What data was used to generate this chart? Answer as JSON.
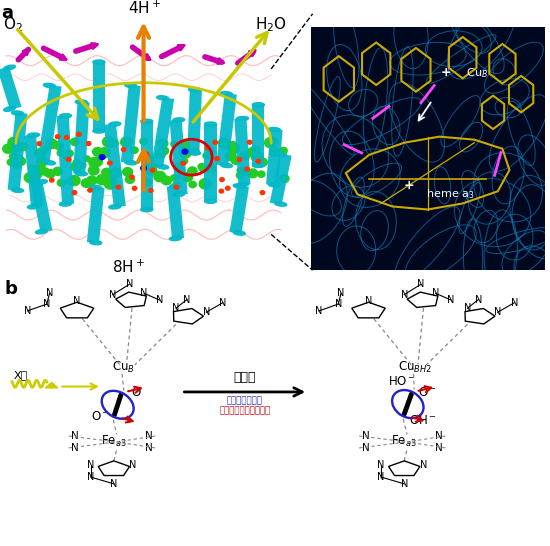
{
  "panel_a_label": "a",
  "panel_b_label": "b",
  "fig_width": 5.5,
  "fig_height": 5.46,
  "background_color": "#ffffff",
  "panel_a": {
    "label_4Hplus": "4H$^+$",
    "label_O2": "O$_2$",
    "label_H2O": "H$_2$O",
    "label_8Hplus": "8H$^+$",
    "orange_color": "#E88000",
    "yellow_color": "#C8C800",
    "red_color": "#DD0000",
    "cyan_color": "#00B8C8",
    "magenta_color": "#CC00AA",
    "green_color": "#22CC22",
    "pink_color": "#FFAAAA",
    "inset_bg": "#000820",
    "inset_yellow": "#CCAA00",
    "inset_cyan": "#1080C0"
  },
  "panel_b": {
    "xray_label": "X線",
    "photolysis_label": "光分解",
    "electron_label": "電子密度の伸長",
    "apparent_label": "見かけの結合長の伸長",
    "left_Cu": "Cu$_B$",
    "right_Cu": "Cu$_{BH2}$",
    "left_Fe": "Fe$_{a3}$",
    "right_Fe": "Fe$_{a3}$",
    "blue_color": "#2222CC",
    "red_color": "#CC0000",
    "yellow_color": "#CCCC00",
    "dash_color": "#888888"
  }
}
